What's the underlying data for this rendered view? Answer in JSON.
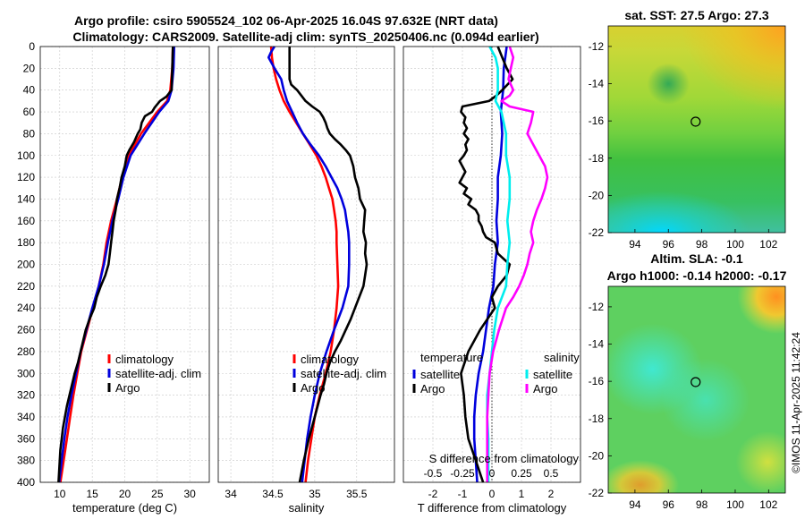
{
  "title": {
    "line1": "Argo profile: csiro 5905524_102 06-Apr-2025 16.04S 97.632E (NRT data)",
    "line2": "Climatology: CARS2009. Satellite-adj clim: synTS_20250406.nc (0.094d earlier)"
  },
  "colors": {
    "climatology": "#ff0000",
    "satellite": "#0000dd",
    "argo": "#000000",
    "sal_satellite": "#00eeee",
    "sal_argo": "#ff00ff"
  },
  "depth_ticks": [
    0,
    20,
    40,
    60,
    80,
    100,
    120,
    140,
    160,
    180,
    200,
    220,
    240,
    260,
    280,
    300,
    320,
    340,
    360,
    380,
    400
  ],
  "chart_data": [
    {
      "type": "line",
      "name": "temperature",
      "xlabel": "temperature (deg C)",
      "xlim": [
        7,
        33
      ],
      "ylim": [
        0,
        400
      ],
      "xticks": [
        10,
        15,
        20,
        25,
        30
      ],
      "legend": [
        "climatology",
        "satellite-adj. clim",
        "Argo"
      ],
      "series": [
        {
          "name": "climatology",
          "depth": [
            0,
            20,
            40,
            50,
            60,
            80,
            100,
            120,
            140,
            160,
            180,
            200,
            220,
            240,
            260,
            280,
            300,
            320,
            340,
            360,
            380,
            400
          ],
          "values": [
            27.4,
            27.3,
            27.0,
            26.5,
            25.0,
            22.5,
            20.6,
            19.6,
            18.8,
            17.9,
            17.2,
            16.7,
            16.0,
            15.1,
            14.2,
            13.3,
            12.7,
            12.1,
            11.6,
            11.1,
            10.6,
            10.1
          ]
        },
        {
          "name": "satellite-adj. clim",
          "depth": [
            0,
            20,
            40,
            50,
            60,
            80,
            100,
            120,
            140,
            160,
            180,
            200,
            220,
            240,
            260,
            280,
            300,
            320,
            340,
            360,
            380,
            400
          ],
          "values": [
            27.6,
            27.5,
            27.2,
            26.7,
            25.3,
            23.0,
            20.9,
            19.8,
            19.0,
            18.1,
            17.4,
            16.8,
            16.0,
            15.0,
            14.1,
            13.2,
            12.5,
            11.8,
            11.2,
            10.7,
            10.3,
            9.9
          ]
        },
        {
          "name": "Argo",
          "depth": [
            0,
            20,
            40,
            46,
            50,
            56,
            60,
            64,
            70,
            76,
            80,
            88,
            95,
            100,
            110,
            120,
            130,
            140,
            150,
            160,
            170,
            180,
            190,
            200,
            210,
            220,
            230,
            240,
            250,
            260,
            270,
            280,
            290,
            300,
            310,
            320,
            330,
            340,
            350,
            360,
            370,
            380,
            390,
            400
          ],
          "values": [
            27.4,
            27.3,
            27.2,
            26.4,
            25.4,
            24.6,
            24.2,
            23.1,
            22.6,
            22.4,
            22.0,
            21.4,
            20.7,
            20.3,
            20.0,
            19.5,
            19.2,
            18.8,
            18.6,
            18.3,
            18.1,
            17.9,
            17.7,
            17.5,
            17.0,
            16.3,
            15.7,
            15.3,
            14.6,
            14.0,
            13.6,
            13.2,
            12.8,
            12.3,
            11.9,
            11.5,
            11.1,
            10.8,
            10.5,
            10.3,
            10.1,
            10.0,
            9.9,
            9.8
          ]
        }
      ]
    },
    {
      "type": "line",
      "name": "salinity",
      "xlabel": "salinity",
      "xlim": [
        33.85,
        35.95
      ],
      "ylim": [
        0,
        400
      ],
      "xticks": [
        34,
        34.5,
        35,
        35.5
      ],
      "legend": [
        "climatology",
        "satellite-adj. clim",
        "Argo"
      ],
      "series": [
        {
          "name": "climatology",
          "depth": [
            0,
            10,
            20,
            30,
            40,
            50,
            60,
            70,
            80,
            90,
            100,
            110,
            120,
            130,
            140,
            150,
            160,
            170,
            180,
            200,
            220,
            240,
            260,
            280,
            300,
            320,
            340,
            360,
            380,
            400
          ],
          "values": [
            34.48,
            34.49,
            34.51,
            34.54,
            34.58,
            34.63,
            34.7,
            34.78,
            34.86,
            34.94,
            35.02,
            35.08,
            35.13,
            35.17,
            35.21,
            35.23,
            35.25,
            35.26,
            35.26,
            35.27,
            35.28,
            35.26,
            35.23,
            35.19,
            35.13,
            35.06,
            35.0,
            34.96,
            34.92,
            34.89
          ]
        },
        {
          "name": "satellite-adj. clim",
          "depth": [
            0,
            5,
            10,
            20,
            30,
            40,
            50,
            60,
            70,
            80,
            90,
            100,
            110,
            120,
            130,
            140,
            150,
            160,
            170,
            180,
            200,
            220,
            240,
            260,
            280,
            300,
            320,
            340,
            360,
            380,
            400
          ],
          "values": [
            34.52,
            34.48,
            34.45,
            34.52,
            34.6,
            34.63,
            34.67,
            34.73,
            34.79,
            34.86,
            34.95,
            35.05,
            35.13,
            35.2,
            35.27,
            35.32,
            35.36,
            35.38,
            35.4,
            35.41,
            35.41,
            35.4,
            35.33,
            35.23,
            35.14,
            35.06,
            35.0,
            34.95,
            34.91,
            34.88,
            34.85
          ]
        },
        {
          "name": "Argo",
          "depth": [
            0,
            10,
            20,
            30,
            35,
            40,
            45,
            50,
            55,
            60,
            65,
            70,
            75,
            80,
            85,
            90,
            95,
            100,
            110,
            120,
            130,
            140,
            150,
            160,
            170,
            180,
            190,
            200,
            210,
            220,
            230,
            240,
            250,
            260,
            270,
            280,
            290,
            300,
            310,
            320,
            340,
            360,
            380,
            400
          ],
          "values": [
            34.7,
            34.7,
            34.7,
            34.7,
            34.72,
            34.79,
            34.84,
            34.89,
            34.97,
            35.06,
            35.1,
            35.13,
            35.15,
            35.18,
            35.24,
            35.31,
            35.37,
            35.42,
            35.46,
            35.48,
            35.52,
            35.54,
            35.6,
            35.59,
            35.58,
            35.61,
            35.6,
            35.62,
            35.6,
            35.58,
            35.53,
            35.48,
            35.43,
            35.37,
            35.31,
            35.24,
            35.18,
            35.14,
            35.11,
            35.07,
            35.0,
            34.93,
            34.87,
            34.82
          ]
        }
      ]
    },
    {
      "type": "line",
      "name": "difference from climatology",
      "xlabel": "T difference from climatology",
      "xlabel_top": "S difference from climatology",
      "xlim": [
        -3,
        3
      ],
      "ylim": [
        0,
        400
      ],
      "xticks": [
        -2,
        -1,
        0,
        1,
        2
      ],
      "xticks_top": [
        "-0.5",
        "-0.25",
        "0",
        "0.25",
        "0.5"
      ],
      "legend_temperature_title": "temperature",
      "legend_salinity_title": "salinity",
      "legend_entries": [
        "satellite",
        "Argo"
      ],
      "series": [
        {
          "name": "T satellite",
          "depth": [
            0,
            10,
            20,
            40,
            60,
            80,
            100,
            120,
            140,
            160,
            180,
            200,
            220,
            240,
            260,
            280,
            300,
            320,
            340,
            360,
            380,
            400
          ],
          "values": [
            0.5,
            0.45,
            0.4,
            0.38,
            0.3,
            0.35,
            0.3,
            0.2,
            0.2,
            0.15,
            0.2,
            0.1,
            0.05,
            -0.1,
            -0.2,
            -0.3,
            -0.45,
            -0.55,
            -0.6,
            -0.6,
            -0.55,
            -0.5
          ]
        },
        {
          "name": "T Argo",
          "depth": [
            0,
            10,
            20,
            30,
            40,
            45,
            50,
            55,
            60,
            65,
            70,
            75,
            80,
            85,
            90,
            95,
            100,
            105,
            110,
            115,
            120,
            125,
            130,
            135,
            140,
            145,
            150,
            155,
            160,
            165,
            170,
            175,
            180,
            190,
            200,
            210,
            220,
            230,
            240,
            260,
            280,
            300,
            320,
            340,
            360,
            380,
            400
          ],
          "values": [
            0.2,
            0.35,
            0.5,
            0.7,
            0.35,
            0.15,
            -0.1,
            -1.0,
            -1.05,
            -0.9,
            -0.95,
            -0.85,
            -0.95,
            -0.8,
            -0.9,
            -0.85,
            -0.95,
            -1.1,
            -1.0,
            -0.9,
            -1.0,
            -1.1,
            -0.85,
            -0.95,
            -0.7,
            -0.8,
            -0.55,
            -0.45,
            -0.45,
            -0.35,
            -0.3,
            -0.2,
            0.1,
            0.2,
            0.6,
            0.5,
            0.2,
            0.0,
            0.1,
            -0.4,
            -0.8,
            -1.05,
            -0.95,
            -0.9,
            -0.8,
            -0.55,
            -0.3
          ]
        },
        {
          "name": "S satellite",
          "depth": [
            0,
            10,
            20,
            40,
            50,
            60,
            80,
            100,
            120,
            140,
            160,
            180,
            200,
            220,
            240,
            260,
            280,
            300,
            320,
            340,
            360,
            380,
            400
          ],
          "values": [
            -0.02,
            0.03,
            0.05,
            0.05,
            0.03,
            0.08,
            0.12,
            0.12,
            0.15,
            0.15,
            0.13,
            0.15,
            0.13,
            0.12,
            0.05,
            0.02,
            0.0,
            -0.02,
            -0.04,
            -0.04,
            -0.03,
            -0.03,
            -0.03
          ]
        },
        {
          "name": "S Argo",
          "depth": [
            0,
            10,
            20,
            30,
            40,
            45,
            50,
            55,
            60,
            70,
            80,
            90,
            100,
            110,
            120,
            130,
            140,
            150,
            160,
            170,
            180,
            190,
            200,
            210,
            220,
            230,
            240,
            260,
            280,
            300,
            320,
            340,
            360,
            380,
            400
          ],
          "values": [
            0.15,
            0.18,
            0.16,
            0.14,
            0.18,
            0.15,
            0.08,
            0.15,
            0.35,
            0.33,
            0.3,
            0.35,
            0.4,
            0.45,
            0.47,
            0.45,
            0.42,
            0.38,
            0.35,
            0.33,
            0.35,
            0.32,
            0.3,
            0.27,
            0.23,
            0.18,
            0.12,
            0.06,
            0.01,
            -0.02,
            -0.03,
            -0.04,
            -0.04,
            -0.04,
            -0.04
          ]
        }
      ]
    },
    {
      "type": "heatmap",
      "name": "satellite SST map",
      "title": "sat. SST: 27.5 Argo: 27.3",
      "xticks": [
        94,
        96,
        98,
        100,
        102
      ],
      "yticks": [
        -12,
        -14,
        -16,
        -18,
        -20,
        -22
      ],
      "float_lon": 97.632,
      "float_lat": -16.04
    },
    {
      "type": "heatmap",
      "name": "altimetry SLA map",
      "title_line1": "Altim. SLA: -0.1",
      "title_line2": "Argo h1000: -0.14 h2000: -0.17",
      "xticks": [
        94,
        96,
        98,
        100,
        102
      ],
      "yticks": [
        -12,
        -14,
        -16,
        -18,
        -20,
        -22
      ],
      "float_lon": 97.632,
      "float_lat": -16.04
    }
  ],
  "side_label": "©IMOS 11-Apr-2025 11:42:24"
}
